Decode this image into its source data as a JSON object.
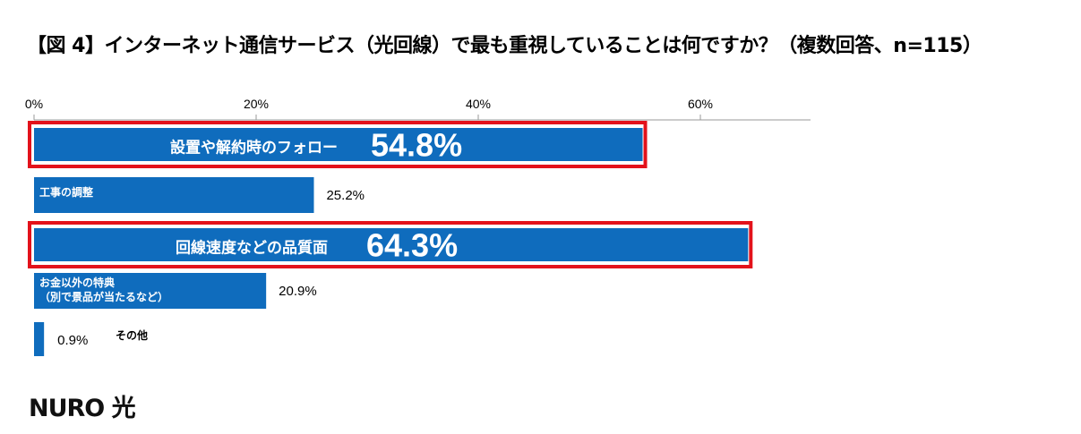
{
  "title": "【図 4】インターネット通信サービス（光回線）で最も重視していることは何ですか？（複数回答、n=115）",
  "brand": "NURO 光",
  "colors": {
    "bar": "#0f6cbd",
    "highlight_border": "#e3121b",
    "axis": "#999999"
  },
  "chart_data": {
    "type": "bar",
    "orientation": "horizontal",
    "categories": [
      [
        "設置や解約時のフォロー"
      ],
      [
        "工事の調整"
      ],
      [
        "回線速度などの品質面"
      ],
      [
        "お金以外の特典",
        "（別で景品が当たるなど）"
      ],
      [
        "その他"
      ]
    ],
    "values": [
      54.8,
      25.2,
      64.3,
      20.9,
      0.9
    ],
    "value_labels": [
      "54.8%",
      "25.2%",
      "64.3%",
      "20.9%",
      "0.9%"
    ],
    "highlighted": [
      true,
      false,
      true,
      false,
      false
    ],
    "xlim": [
      0,
      70
    ],
    "xticks": [
      0,
      20,
      40,
      60
    ],
    "xtick_labels": [
      "0%",
      "20%",
      "40%",
      "60%"
    ]
  }
}
